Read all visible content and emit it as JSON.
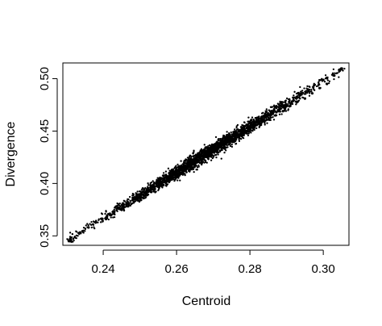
{
  "chart_data": {
    "type": "scatter",
    "title": "",
    "xlabel": "Centroid",
    "ylabel": "Divergence",
    "xlim": [
      0.229,
      0.307
    ],
    "ylim": [
      0.341,
      0.515
    ],
    "xticks": [
      0.24,
      0.26,
      0.28,
      0.3
    ],
    "yticks": [
      0.35,
      0.4,
      0.45,
      0.5
    ],
    "xtick_labels": [
      "0.24",
      "0.26",
      "0.28",
      "0.30"
    ],
    "ytick_labels": [
      "0.35",
      "0.40",
      "0.45",
      "0.50"
    ],
    "grid": false,
    "legend": "none",
    "point_color": "#000000",
    "trend": {
      "description": "dense linear cloud of points from lower-left to upper-right",
      "start": [
        0.231,
        0.347
      ],
      "end": [
        0.305,
        0.509
      ],
      "points": [
        [
          0.231,
          0.347
        ],
        [
          0.236,
          0.358
        ],
        [
          0.238,
          0.363
        ],
        [
          0.241,
          0.367
        ],
        [
          0.243,
          0.373
        ],
        [
          0.245,
          0.376
        ],
        [
          0.247,
          0.38
        ],
        [
          0.249,
          0.385
        ],
        [
          0.251,
          0.389
        ],
        [
          0.253,
          0.392
        ],
        [
          0.255,
          0.398
        ],
        [
          0.257,
          0.402
        ],
        [
          0.259,
          0.406
        ],
        [
          0.261,
          0.41
        ],
        [
          0.263,
          0.414
        ],
        [
          0.265,
          0.418
        ],
        [
          0.267,
          0.423
        ],
        [
          0.269,
          0.427
        ],
        [
          0.271,
          0.431
        ],
        [
          0.273,
          0.436
        ],
        [
          0.275,
          0.44
        ],
        [
          0.277,
          0.444
        ],
        [
          0.279,
          0.448
        ],
        [
          0.281,
          0.452
        ],
        [
          0.283,
          0.456
        ],
        [
          0.285,
          0.461
        ],
        [
          0.287,
          0.465
        ],
        [
          0.289,
          0.469
        ],
        [
          0.291,
          0.474
        ],
        [
          0.293,
          0.478
        ],
        [
          0.295,
          0.481
        ],
        [
          0.297,
          0.486
        ],
        [
          0.299,
          0.491
        ],
        [
          0.301,
          0.495
        ],
        [
          0.303,
          0.503
        ],
        [
          0.305,
          0.509
        ]
      ]
    }
  }
}
